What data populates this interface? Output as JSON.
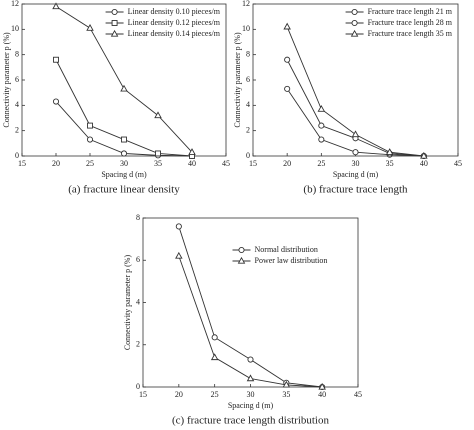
{
  "chart_data": [
    {
      "type": "line",
      "caption": "(a) fracture linear density",
      "xlabel": "Spacing d (m)",
      "ylabel": "Connectivity parameter p (%)",
      "x": [
        20,
        25,
        30,
        35,
        40
      ],
      "xlim": [
        15,
        45
      ],
      "xticks": [
        15,
        20,
        25,
        30,
        35,
        40,
        45
      ],
      "ylim": [
        0,
        12
      ],
      "yticks": [
        0,
        2,
        4,
        6,
        8,
        10,
        12
      ],
      "legend": "upper right",
      "series": [
        {
          "name": "Linear density 0.10 pieces/m",
          "color": "#333333",
          "marker": "circle",
          "values": [
            4.3,
            1.3,
            0.2,
            0.05,
            0
          ]
        },
        {
          "name": "Linear density 0.12 pieces/m",
          "color": "#333333",
          "marker": "square",
          "values": [
            7.6,
            2.4,
            1.3,
            0.2,
            0
          ]
        },
        {
          "name": "Linear density 0.14 pieces/m",
          "color": "#333333",
          "marker": "triangle",
          "values": [
            11.8,
            10.1,
            5.3,
            3.2,
            0.3
          ]
        }
      ]
    },
    {
      "type": "line",
      "caption": "(b) fracture trace length",
      "xlabel": "Spacing d (m)",
      "ylabel": "Connectivity parameter p (%)",
      "x": [
        20,
        25,
        30,
        35,
        40
      ],
      "xlim": [
        15,
        45
      ],
      "xticks": [
        15,
        20,
        25,
        30,
        35,
        40,
        45
      ],
      "ylim": [
        0,
        12
      ],
      "yticks": [
        0,
        2,
        4,
        6,
        8,
        10,
        12
      ],
      "legend": "upper right",
      "series": [
        {
          "name": "Fracture trace length 21 m",
          "color": "#333333",
          "marker": "circle",
          "values": [
            5.3,
            1.3,
            0.3,
            0.1,
            0
          ]
        },
        {
          "name": "Fracture trace length 28 m",
          "color": "#333333",
          "marker": "circle",
          "values": [
            7.6,
            2.4,
            1.4,
            0.2,
            0
          ]
        },
        {
          "name": "Fracture trace length 35 m",
          "color": "#333333",
          "marker": "triangle",
          "values": [
            10.2,
            3.7,
            1.7,
            0.3,
            0
          ]
        }
      ]
    },
    {
      "type": "line",
      "caption": "(c) fracture trace length distribution",
      "xlabel": "Spacing d (m)",
      "ylabel": "Connectivity parameter p (%)",
      "x": [
        20,
        25,
        30,
        35,
        40
      ],
      "xlim": [
        15,
        45
      ],
      "xticks": [
        15,
        20,
        25,
        30,
        35,
        40,
        45
      ],
      "ylim": [
        0,
        8
      ],
      "yticks": [
        0,
        2,
        4,
        6,
        8
      ],
      "legend": "upper center",
      "series": [
        {
          "name": "Normal distribution",
          "color": "#333333",
          "marker": "circle",
          "values": [
            7.6,
            2.35,
            1.3,
            0.2,
            0
          ]
        },
        {
          "name": "Power law distribution",
          "color": "#333333",
          "marker": "triangle",
          "values": [
            6.2,
            1.4,
            0.4,
            0.1,
            0
          ]
        }
      ]
    }
  ]
}
